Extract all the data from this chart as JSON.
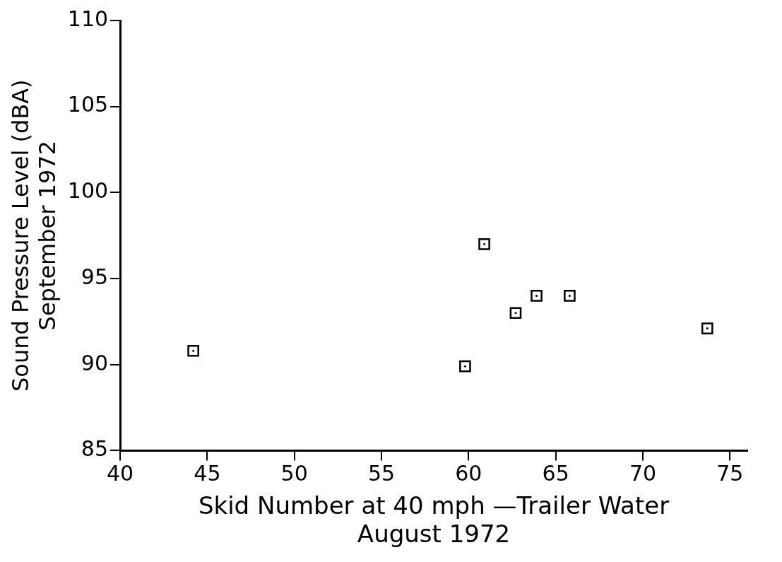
{
  "chart_data": {
    "type": "scatter",
    "xlabel": "Skid Number at 40 mph —Trailer Water\nAugust 1972",
    "ylabel": "Sound Pressure Level (dBA)\nSeptember 1972",
    "x": [
      44.2,
      59.8,
      60.9,
      62.7,
      63.9,
      65.8,
      73.7
    ],
    "series": [
      {
        "color": "#000000",
        "values": [
          90.8,
          89.9,
          97.0,
          93.0,
          94.0,
          94.0,
          92.1
        ]
      }
    ],
    "xlim": [
      40,
      76
    ],
    "ylim": [
      85,
      110
    ],
    "xticks": [
      40,
      45,
      50,
      55,
      60,
      65,
      70,
      75
    ],
    "yticks": [
      85,
      90,
      95,
      100,
      105,
      110
    ],
    "grid": false,
    "legend": false,
    "marker": "square"
  }
}
